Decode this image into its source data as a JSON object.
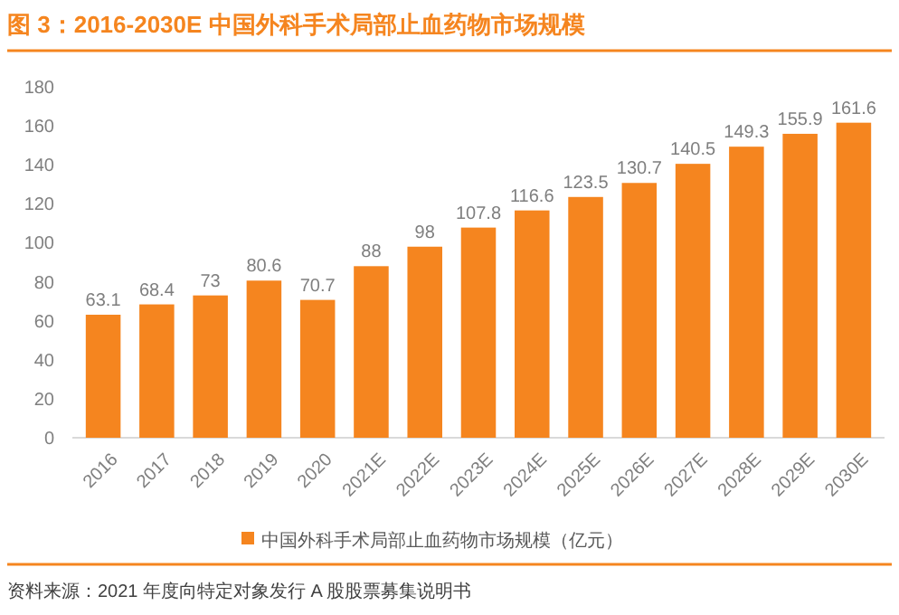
{
  "chart_data": {
    "type": "bar",
    "title": "图 3：2016-2030E 中国外科手术局部止血药物市场规模",
    "categories": [
      "2016",
      "2017",
      "2018",
      "2019",
      "2020",
      "2021E",
      "2022E",
      "2023E",
      "2024E",
      "2025E",
      "2026E",
      "2027E",
      "2028E",
      "2029E",
      "2030E"
    ],
    "series": [
      {
        "name": "中国外科手术局部止血药物市场规模（亿元）",
        "color": "#f5851f",
        "values": [
          63.1,
          68.4,
          73,
          80.6,
          70.7,
          88,
          98,
          107.8,
          116.6,
          123.5,
          130.7,
          140.5,
          149.3,
          155.9,
          161.6
        ]
      }
    ],
    "ylim": [
      0,
      180
    ],
    "yticks": [
      0,
      20,
      40,
      60,
      80,
      100,
      120,
      140,
      160,
      180
    ],
    "data_labels": true,
    "legend": "bottom",
    "annotations": [
      "资料来源：2021 年度向特定对象发行 A 股股票募集说明书"
    ]
  }
}
